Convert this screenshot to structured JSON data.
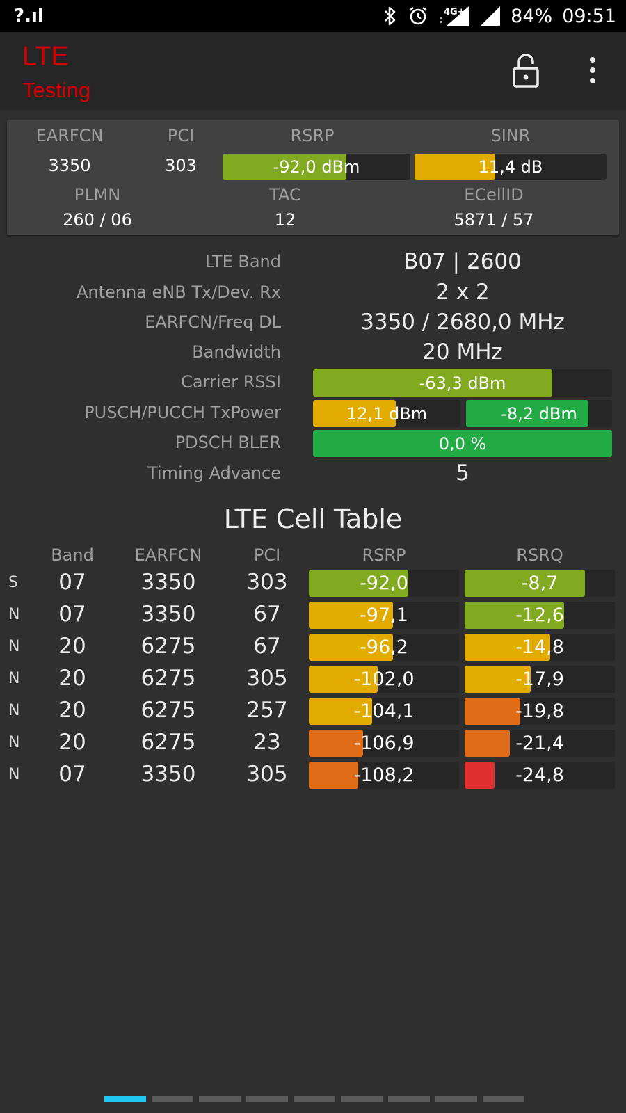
{
  "status_bar": {
    "signal_text": "?.ıl",
    "network": "4G+",
    "battery": "84%",
    "time": "09:51"
  },
  "app_bar": {
    "title": "LTE",
    "subtitle": "Testing"
  },
  "summary": {
    "labels": {
      "earfcn": "EARFCN",
      "pci": "PCI",
      "rsrp": "RSRP",
      "sinr": "SINR",
      "plmn": "PLMN",
      "tac": "TAC",
      "ecellid": "ECellID"
    },
    "earfcn": "3350",
    "pci": "303",
    "rsrp": {
      "text": "-92,0 dBm",
      "level": 0.66,
      "color": "#82aa20"
    },
    "sinr": {
      "text": "11,4 dB",
      "level": 0.42,
      "color": "#e1ab00"
    },
    "plmn": "260 / 06",
    "tac": "12",
    "ecellid": "5871 / 57"
  },
  "details": {
    "band": {
      "label": "LTE Band",
      "value": "B07 | 2600"
    },
    "antenna": {
      "label": "Antenna eNB Tx/Dev. Rx",
      "value": "2 x 2"
    },
    "freq": {
      "label": "EARFCN/Freq DL",
      "value": "3350 / 2680,0 MHz"
    },
    "bandwidth": {
      "label": "Bandwidth",
      "value": "20 MHz"
    },
    "rssi": {
      "label": "Carrier RSSI",
      "text": "-63,3 dBm",
      "level": 0.8,
      "color": "#82aa20"
    },
    "txpower": {
      "label": "PUSCH/PUCCH TxPower",
      "pusch": {
        "text": "12,1 dBm",
        "level": 0.56,
        "color": "#e1ab00"
      },
      "pucch": {
        "text": "-8,2 dBm",
        "level": 0.84,
        "color": "#23ab45"
      }
    },
    "bler": {
      "label": "PDSCH BLER",
      "text": "0,0 %",
      "level": 1.0,
      "color": "#23ab45"
    },
    "timing_advance": {
      "label": "Timing Advance",
      "value": "5"
    }
  },
  "cell_table": {
    "title": "LTE Cell Table",
    "headers": {
      "band": "Band",
      "earfcn": "EARFCN",
      "pci": "PCI",
      "rsrp": "RSRP",
      "rsrq": "RSRQ"
    },
    "rows": [
      {
        "type": "S",
        "band": "07",
        "earfcn": "3350",
        "pci": "303",
        "rsrp": {
          "text": "-92,0",
          "level": 0.66,
          "color": "#82aa20"
        },
        "rsrq": {
          "text": "-8,7",
          "level": 0.8,
          "color": "#82aa20"
        }
      },
      {
        "type": "N",
        "band": "07",
        "earfcn": "3350",
        "pci": "67",
        "rsrp": {
          "text": "-97,1",
          "level": 0.56,
          "color": "#e1ab00"
        },
        "rsrq": {
          "text": "-12,6",
          "level": 0.66,
          "color": "#82aa20"
        }
      },
      {
        "type": "N",
        "band": "20",
        "earfcn": "6275",
        "pci": "67",
        "rsrp": {
          "text": "-96,2",
          "level": 0.56,
          "color": "#e1ab00"
        },
        "rsrq": {
          "text": "-14,8",
          "level": 0.57,
          "color": "#e1ab00"
        }
      },
      {
        "type": "N",
        "band": "20",
        "earfcn": "6275",
        "pci": "305",
        "rsrp": {
          "text": "-102,0",
          "level": 0.46,
          "color": "#e1ab00"
        },
        "rsrq": {
          "text": "-17,9",
          "level": 0.44,
          "color": "#e1ab00"
        }
      },
      {
        "type": "N",
        "band": "20",
        "earfcn": "6275",
        "pci": "257",
        "rsrp": {
          "text": "-104,1",
          "level": 0.42,
          "color": "#e1ab00"
        },
        "rsrq": {
          "text": "-19,8",
          "level": 0.37,
          "color": "#e06c18"
        }
      },
      {
        "type": "N",
        "band": "20",
        "earfcn": "6275",
        "pci": "23",
        "rsrp": {
          "text": "-106,9",
          "level": 0.36,
          "color": "#e06c18"
        },
        "rsrq": {
          "text": "-21,4",
          "level": 0.3,
          "color": "#e06c18"
        }
      },
      {
        "type": "N",
        "band": "07",
        "earfcn": "3350",
        "pci": "305",
        "rsrp": {
          "text": "-108,2",
          "level": 0.33,
          "color": "#e06c18"
        },
        "rsrq": {
          "text": "-24,8",
          "level": 0.2,
          "color": "#e03030"
        }
      }
    ]
  },
  "pager": {
    "count": 9,
    "active": 0
  }
}
